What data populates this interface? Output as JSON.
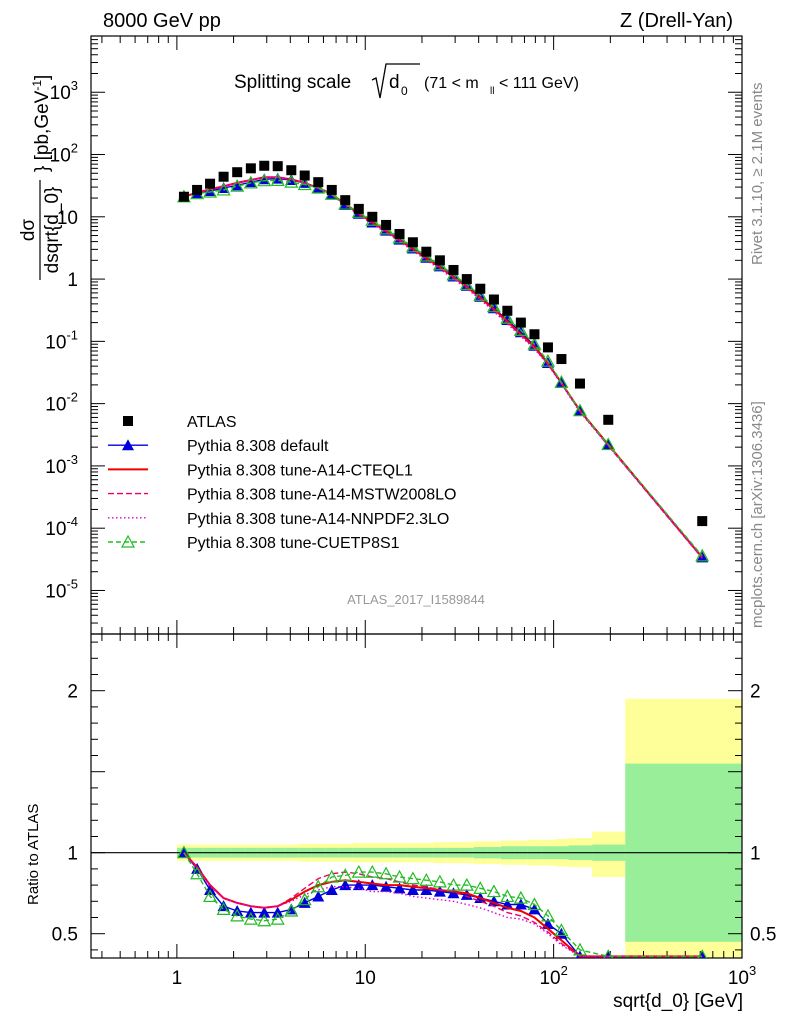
{
  "header": {
    "left": "8000 GeV pp",
    "right": "Z (Drell-Yan)"
  },
  "side_labels": {
    "right_top": "Rivet 3.1.10, ≥ 2.1M events",
    "right_bottom": "mcplots.cern.ch [arXiv:1306.3436]"
  },
  "chart_data": [
    {
      "type": "scatter",
      "title": "Splitting scale √d₀ (71 < m_ll < 111 GeV)",
      "title_main": "Splitting scale",
      "title_sqrt": "d",
      "title_sqrt_sub": "0",
      "title_cut": "(71 < m",
      "title_cut_sub": "ll",
      "title_cut_end": " < 111 GeV)",
      "xlabel": "sqrt{d_0} [GeV]",
      "ylabel": "dσ/dsqrt{d_0} [pb,GeV⁻¹]",
      "ylabel_num": "dσ",
      "ylabel_den": "dsqrt{d_0}",
      "ylabel_unit_pre": "} [pb,GeV",
      "ylabel_unit_sup": "-1",
      "ylabel_unit_post": "]",
      "xscale": "log",
      "yscale": "log",
      "xlim": [
        0.35,
        1000
      ],
      "ylim": [
        2e-06,
        8000
      ],
      "ytick_labels": [
        {
          "base": "10",
          "exp": "-5",
          "v": 1e-05
        },
        {
          "base": "10",
          "exp": "-4",
          "v": 0.0001
        },
        {
          "base": "10",
          "exp": "-3",
          "v": 0.001
        },
        {
          "base": "10",
          "exp": "-2",
          "v": 0.01
        },
        {
          "base": "10",
          "exp": "-1",
          "v": 0.1
        },
        {
          "base": "1",
          "exp": "",
          "v": 1
        },
        {
          "base": "10",
          "exp": "",
          "v": 10
        },
        {
          "base": "10",
          "exp": "2",
          "v": 100
        },
        {
          "base": "10",
          "exp": "3",
          "v": 1000
        }
      ],
      "watermark": "ATLAS_2017_I1589844",
      "legend_position": "bottom-left",
      "x": [
        1.09,
        1.28,
        1.5,
        1.77,
        2.09,
        2.47,
        2.91,
        3.43,
        4.05,
        4.77,
        5.63,
        6.64,
        7.83,
        9.24,
        10.9,
        12.9,
        15.2,
        17.9,
        21.1,
        24.9,
        29.4,
        34.6,
        40.8,
        48.2,
        56.8,
        67.0,
        79.1,
        93.3,
        110,
        138,
        195,
        615
      ],
      "series": [
        {
          "name": "ATLAS",
          "color": "#000000",
          "marker": "square",
          "values": [
            21,
            27,
            34,
            44,
            52,
            60,
            66,
            65,
            56,
            46,
            36,
            27,
            18.5,
            13.4,
            10,
            7.4,
            5.3,
            3.9,
            2.75,
            2.0,
            1.4,
            1.0,
            0.7,
            0.47,
            0.31,
            0.2,
            0.13,
            0.08,
            0.052,
            0.021,
            0.0055,
            0.00013
          ]
        },
        {
          "name": "Pythia 8.308 default",
          "color": "#0000dd",
          "marker": "triangle",
          "dash": "",
          "values": [
            21,
            24,
            26,
            29,
            32,
            36,
            40,
            41,
            39,
            35,
            29,
            23,
            15.5,
            11.2,
            8.1,
            6.0,
            4.3,
            3.1,
            2.2,
            1.6,
            1.1,
            0.78,
            0.52,
            0.34,
            0.22,
            0.14,
            0.085,
            0.045,
            0.0215,
            0.0077,
            0.0022,
            3.4e-05
          ]
        },
        {
          "name": "Pythia 8.308 tune-A14-CTEQL1",
          "color": "#ee0000",
          "marker": "none",
          "dash": "",
          "values": [
            21,
            24.5,
            27.5,
            31,
            35,
            39,
            43,
            43,
            40,
            35,
            29,
            23,
            16,
            11.4,
            8.1,
            5.9,
            4.2,
            3.05,
            2.15,
            1.55,
            1.07,
            0.75,
            0.5,
            0.33,
            0.21,
            0.13,
            0.082,
            0.044,
            0.0215,
            0.0077,
            0.0022,
            3.4e-05
          ]
        },
        {
          "name": "Pythia 8.308 tune-A14-MSTW2008LO",
          "color": "#ee0066",
          "marker": "none",
          "dash": "6,3",
          "values": [
            21,
            24.5,
            27.5,
            31,
            35,
            39,
            43,
            43,
            40,
            35,
            29.5,
            23.5,
            16.2,
            11.5,
            8.2,
            6.0,
            4.25,
            3.05,
            2.15,
            1.55,
            1.07,
            0.75,
            0.49,
            0.32,
            0.2,
            0.125,
            0.078,
            0.043,
            0.021,
            0.0075,
            0.0021,
            3.3e-05
          ]
        },
        {
          "name": "Pythia 8.308 tune-A14-NNPDF2.3LO",
          "color": "#dd00dd",
          "marker": "none",
          "dash": "1.5,2.5",
          "values": [
            21,
            24.5,
            27.5,
            31,
            35,
            39,
            43,
            43,
            40,
            35,
            28.5,
            22.5,
            15,
            10.7,
            7.6,
            5.6,
            4.0,
            2.85,
            2.0,
            1.45,
            1.0,
            0.7,
            0.47,
            0.3,
            0.19,
            0.12,
            0.076,
            0.042,
            0.0205,
            0.0073,
            0.0021,
            3.3e-05
          ]
        },
        {
          "name": "Pythia 8.308 tune-CUETP8S1",
          "color": "#22bb22",
          "marker": "triangle-open",
          "dash": "5,3",
          "values": [
            21,
            23.5,
            25,
            27,
            31,
            35,
            38,
            38.5,
            36,
            33,
            29,
            23,
            16,
            11.8,
            8.8,
            6.4,
            4.6,
            3.3,
            2.35,
            1.7,
            1.17,
            0.82,
            0.55,
            0.36,
            0.235,
            0.15,
            0.09,
            0.048,
            0.022,
            0.0077,
            0.0022,
            3.6e-05
          ]
        }
      ]
    },
    {
      "type": "line",
      "ylabel": "Ratio to ATLAS",
      "xscale": "log",
      "xlim": [
        0.35,
        1000
      ],
      "ylim": [
        0.35,
        2.35
      ],
      "ytick_labels": [
        "0.5",
        "1",
        "2"
      ],
      "xtick_labels": [
        {
          "base": "1",
          "exp": "",
          "v": 1
        },
        {
          "base": "10",
          "exp": "",
          "v": 10
        },
        {
          "base": "10",
          "exp": "2",
          "v": 100
        },
        {
          "base": "10",
          "exp": "3",
          "v": 1000
        }
      ],
      "bin_edges": [
        1.0,
        1.18,
        1.39,
        1.64,
        1.93,
        2.28,
        2.69,
        3.17,
        3.74,
        4.41,
        5.2,
        6.13,
        7.23,
        8.53,
        10.1,
        11.9,
        14.0,
        16.5,
        19.5,
        23.0,
        27.1,
        32.0,
        37.7,
        44.5,
        52.5,
        61.9,
        73.0,
        86.1,
        101.6,
        120,
        160,
        240,
        1000
      ],
      "band_inner": [
        0.03,
        0.03,
        0.03,
        0.03,
        0.03,
        0.03,
        0.03,
        0.03,
        0.03,
        0.03,
        0.03,
        0.03,
        0.03,
        0.03,
        0.03,
        0.03,
        0.03,
        0.03,
        0.03,
        0.03,
        0.03,
        0.03,
        0.035,
        0.035,
        0.04,
        0.04,
        0.04,
        0.04,
        0.04,
        0.045,
        0.05,
        0.55
      ],
      "band_outer_up": [
        0.05,
        0.05,
        0.05,
        0.05,
        0.05,
        0.05,
        0.05,
        0.05,
        0.05,
        0.055,
        0.055,
        0.055,
        0.055,
        0.06,
        0.06,
        0.06,
        0.06,
        0.06,
        0.06,
        0.065,
        0.065,
        0.065,
        0.07,
        0.07,
        0.075,
        0.075,
        0.08,
        0.08,
        0.085,
        0.09,
        0.13,
        0.95
      ],
      "band_outer_dn": [
        0.05,
        0.05,
        0.05,
        0.05,
        0.05,
        0.05,
        0.05,
        0.05,
        0.05,
        0.055,
        0.055,
        0.055,
        0.055,
        0.06,
        0.06,
        0.06,
        0.06,
        0.06,
        0.06,
        0.065,
        0.065,
        0.065,
        0.07,
        0.07,
        0.075,
        0.075,
        0.08,
        0.08,
        0.085,
        0.09,
        0.15,
        0.7
      ],
      "x": [
        1.09,
        1.28,
        1.5,
        1.77,
        2.09,
        2.47,
        2.91,
        3.43,
        4.05,
        4.77,
        5.63,
        6.64,
        7.83,
        9.24,
        10.9,
        12.9,
        15.2,
        17.9,
        21.1,
        24.9,
        29.4,
        34.6,
        40.8,
        48.2,
        56.8,
        67.0,
        79.1,
        93.3,
        110,
        138,
        195,
        615
      ],
      "series": [
        {
          "name": "Pythia 8.308 default",
          "color": "#0000dd",
          "marker": "triangle",
          "dash": "",
          "values": [
            1.0,
            0.9,
            0.77,
            0.67,
            0.64,
            0.63,
            0.63,
            0.63,
            0.65,
            0.69,
            0.73,
            0.77,
            0.8,
            0.8,
            0.8,
            0.79,
            0.78,
            0.77,
            0.77,
            0.76,
            0.75,
            0.74,
            0.72,
            0.7,
            0.68,
            0.68,
            0.65,
            0.56,
            0.5,
            0.36,
            0.36,
            0.36
          ]
        },
        {
          "name": "Pythia 8.308 tune-A14-CTEQL1",
          "color": "#ee0000",
          "marker": "none",
          "dash": "",
          "values": [
            1.0,
            0.91,
            0.8,
            0.72,
            0.69,
            0.67,
            0.66,
            0.67,
            0.71,
            0.76,
            0.8,
            0.82,
            0.83,
            0.82,
            0.81,
            0.8,
            0.8,
            0.79,
            0.78,
            0.77,
            0.76,
            0.75,
            0.72,
            0.69,
            0.66,
            0.64,
            0.6,
            0.53,
            0.46,
            0.36,
            0.36,
            0.36
          ]
        },
        {
          "name": "Pythia 8.308 tune-A14-MSTW2008LO",
          "color": "#ee0066",
          "marker": "none",
          "dash": "6,3",
          "values": [
            1.0,
            0.91,
            0.8,
            0.72,
            0.69,
            0.67,
            0.66,
            0.67,
            0.72,
            0.78,
            0.84,
            0.87,
            0.88,
            0.87,
            0.85,
            0.84,
            0.82,
            0.8,
            0.79,
            0.77,
            0.76,
            0.73,
            0.7,
            0.67,
            0.63,
            0.61,
            0.57,
            0.51,
            0.44,
            0.36,
            0.36,
            0.36
          ]
        },
        {
          "name": "Pythia 8.308 tune-A14-NNPDF2.3LO",
          "color": "#dd00dd",
          "marker": "none",
          "dash": "1.5,2.5",
          "values": [
            1.0,
            0.9,
            0.79,
            0.72,
            0.69,
            0.67,
            0.66,
            0.67,
            0.7,
            0.74,
            0.77,
            0.79,
            0.79,
            0.78,
            0.76,
            0.76,
            0.75,
            0.73,
            0.72,
            0.71,
            0.7,
            0.68,
            0.66,
            0.63,
            0.6,
            0.59,
            0.56,
            0.5,
            0.43,
            0.36,
            0.36,
            0.36
          ]
        },
        {
          "name": "Pythia 8.308 tune-CUETP8S1",
          "color": "#22bb22",
          "marker": "triangle-open",
          "dash": "5,3",
          "values": [
            1.0,
            0.87,
            0.73,
            0.65,
            0.61,
            0.59,
            0.58,
            0.59,
            0.64,
            0.71,
            0.79,
            0.85,
            0.86,
            0.88,
            0.88,
            0.87,
            0.85,
            0.84,
            0.83,
            0.82,
            0.8,
            0.8,
            0.78,
            0.76,
            0.73,
            0.72,
            0.68,
            0.61,
            0.52,
            0.4,
            0.36,
            0.36
          ]
        }
      ]
    }
  ]
}
